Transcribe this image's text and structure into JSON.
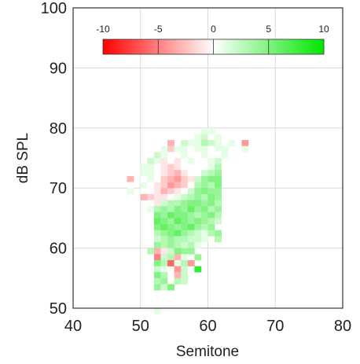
{
  "chart_data": {
    "type": "heatmap",
    "title": "",
    "xlabel": "Semitone",
    "ylabel": "dB SPL",
    "xlim": [
      40,
      80
    ],
    "ylim": [
      50,
      100
    ],
    "xticks": [
      "40",
      "50",
      "60",
      "70",
      "80"
    ],
    "yticks": [
      "50",
      "60",
      "70",
      "80",
      "90",
      "100"
    ],
    "grid": true,
    "colorbar": {
      "position": "top-inside",
      "range": [
        -10,
        10
      ],
      "ticks": [
        "-10",
        "-5",
        "0",
        "5",
        "10"
      ],
      "colors": {
        "negative": "#ff0000",
        "zero": "#ffffff",
        "positive": "#00e600"
      }
    },
    "cell_size": {
      "semitone": 1,
      "db": 1
    },
    "cells": [
      [
        59,
        79,
        1
      ],
      [
        60,
        79,
        1
      ],
      [
        58,
        78,
        1
      ],
      [
        59,
        78,
        2
      ],
      [
        60,
        78,
        0
      ],
      [
        61,
        78,
        1
      ],
      [
        54,
        77,
        -3
      ],
      [
        56,
        77,
        2
      ],
      [
        57,
        77,
        1
      ],
      [
        58,
        77,
        1
      ],
      [
        59,
        77,
        3
      ],
      [
        60,
        77,
        2
      ],
      [
        61,
        77,
        1
      ],
      [
        63,
        77,
        1
      ],
      [
        65,
        77,
        -4
      ],
      [
        53,
        76,
        1
      ],
      [
        54,
        76,
        -2
      ],
      [
        55,
        76,
        1
      ],
      [
        56,
        76,
        1
      ],
      [
        57,
        76,
        0
      ],
      [
        58,
        76,
        1
      ],
      [
        59,
        76,
        1
      ],
      [
        60,
        76,
        0
      ],
      [
        61,
        76,
        1
      ],
      [
        62,
        76,
        1
      ],
      [
        64,
        76,
        0
      ],
      [
        65,
        76,
        1
      ],
      [
        52,
        75,
        2
      ],
      [
        53,
        75,
        1
      ],
      [
        54,
        75,
        0
      ],
      [
        55,
        75,
        0
      ],
      [
        56,
        75,
        1
      ],
      [
        57,
        75,
        0
      ],
      [
        58,
        75,
        0
      ],
      [
        59,
        75,
        1
      ],
      [
        60,
        75,
        0
      ],
      [
        61,
        75,
        0
      ],
      [
        62,
        75,
        1
      ],
      [
        51,
        74,
        2
      ],
      [
        52,
        74,
        1
      ],
      [
        53,
        74,
        -1
      ],
      [
        54,
        74,
        0
      ],
      [
        55,
        74,
        -1
      ],
      [
        56,
        74,
        0
      ],
      [
        57,
        74,
        1
      ],
      [
        58,
        74,
        0
      ],
      [
        59,
        74,
        0
      ],
      [
        60,
        74,
        1
      ],
      [
        61,
        74,
        2
      ],
      [
        50,
        73,
        1
      ],
      [
        51,
        73,
        1
      ],
      [
        52,
        73,
        0
      ],
      [
        53,
        73,
        -1
      ],
      [
        54,
        73,
        -2
      ],
      [
        55,
        73,
        -1
      ],
      [
        56,
        73,
        0
      ],
      [
        57,
        73,
        0
      ],
      [
        58,
        73,
        0
      ],
      [
        59,
        73,
        0
      ],
      [
        60,
        73,
        1
      ],
      [
        61,
        73,
        3
      ],
      [
        50,
        72,
        1
      ],
      [
        51,
        72,
        1
      ],
      [
        52,
        72,
        0
      ],
      [
        53,
        72,
        -1
      ],
      [
        54,
        72,
        -2
      ],
      [
        55,
        72,
        -3
      ],
      [
        56,
        72,
        -1
      ],
      [
        57,
        72,
        0
      ],
      [
        58,
        72,
        0
      ],
      [
        59,
        72,
        2
      ],
      [
        60,
        72,
        3
      ],
      [
        61,
        72,
        4
      ],
      [
        48,
        71,
        -3
      ],
      [
        50,
        71,
        0
      ],
      [
        51,
        71,
        1
      ],
      [
        52,
        71,
        0
      ],
      [
        53,
        71,
        -2
      ],
      [
        54,
        71,
        -3
      ],
      [
        55,
        71,
        -4
      ],
      [
        56,
        71,
        -2
      ],
      [
        57,
        71,
        -1
      ],
      [
        58,
        71,
        2
      ],
      [
        59,
        71,
        4
      ],
      [
        60,
        71,
        5
      ],
      [
        61,
        71,
        5
      ],
      [
        48,
        70,
        0
      ],
      [
        50,
        70,
        1
      ],
      [
        51,
        70,
        0
      ],
      [
        52,
        70,
        -1
      ],
      [
        53,
        70,
        -2
      ],
      [
        54,
        70,
        -4
      ],
      [
        55,
        70,
        -3
      ],
      [
        56,
        70,
        -2
      ],
      [
        57,
        70,
        0
      ],
      [
        58,
        70,
        3
      ],
      [
        59,
        70,
        4
      ],
      [
        60,
        70,
        3
      ],
      [
        61,
        70,
        5
      ],
      [
        48,
        69,
        1
      ],
      [
        50,
        69,
        0
      ],
      [
        51,
        69,
        0
      ],
      [
        52,
        69,
        -1
      ],
      [
        53,
        69,
        -3
      ],
      [
        54,
        69,
        -2
      ],
      [
        55,
        69,
        -1
      ],
      [
        56,
        69,
        0
      ],
      [
        57,
        69,
        2
      ],
      [
        58,
        69,
        4
      ],
      [
        59,
        69,
        5
      ],
      [
        60,
        69,
        4
      ],
      [
        61,
        69,
        4
      ],
      [
        50,
        68,
        -3
      ],
      [
        51,
        68,
        -2
      ],
      [
        52,
        68,
        -1
      ],
      [
        53,
        68,
        -1
      ],
      [
        54,
        68,
        0
      ],
      [
        55,
        68,
        1
      ],
      [
        56,
        68,
        2
      ],
      [
        57,
        68,
        3
      ],
      [
        58,
        68,
        4
      ],
      [
        59,
        68,
        3
      ],
      [
        60,
        68,
        5
      ],
      [
        61,
        68,
        4
      ],
      [
        51,
        67,
        0
      ],
      [
        52,
        67,
        -1
      ],
      [
        53,
        67,
        2
      ],
      [
        54,
        67,
        3
      ],
      [
        55,
        67,
        3
      ],
      [
        56,
        67,
        4
      ],
      [
        57,
        67,
        5
      ],
      [
        58,
        67,
        5
      ],
      [
        59,
        67,
        4
      ],
      [
        60,
        67,
        5
      ],
      [
        61,
        67,
        3
      ],
      [
        51,
        66,
        1
      ],
      [
        52,
        66,
        3
      ],
      [
        53,
        66,
        4
      ],
      [
        54,
        66,
        3
      ],
      [
        55,
        66,
        5
      ],
      [
        56,
        66,
        4
      ],
      [
        57,
        66,
        6
      ],
      [
        58,
        66,
        4
      ],
      [
        59,
        66,
        5
      ],
      [
        60,
        66,
        3
      ],
      [
        61,
        66,
        4
      ],
      [
        52,
        65,
        5
      ],
      [
        53,
        65,
        4
      ],
      [
        54,
        65,
        6
      ],
      [
        55,
        65,
        5
      ],
      [
        56,
        65,
        5
      ],
      [
        57,
        65,
        4
      ],
      [
        58,
        65,
        3
      ],
      [
        59,
        65,
        4
      ],
      [
        60,
        65,
        5
      ],
      [
        61,
        65,
        3
      ],
      [
        52,
        64,
        6
      ],
      [
        53,
        64,
        5
      ],
      [
        54,
        64,
        4
      ],
      [
        55,
        64,
        6
      ],
      [
        56,
        64,
        5
      ],
      [
        57,
        64,
        4
      ],
      [
        58,
        64,
        5
      ],
      [
        59,
        64,
        4
      ],
      [
        60,
        64,
        3
      ],
      [
        61,
        64,
        2
      ],
      [
        52,
        63,
        5
      ],
      [
        53,
        63,
        6
      ],
      [
        54,
        63,
        5
      ],
      [
        55,
        63,
        4
      ],
      [
        56,
        63,
        5
      ],
      [
        57,
        63,
        6
      ],
      [
        58,
        63,
        4
      ],
      [
        59,
        63,
        3
      ],
      [
        60,
        63,
        4
      ],
      [
        52,
        62,
        3
      ],
      [
        53,
        62,
        4
      ],
      [
        54,
        62,
        5
      ],
      [
        55,
        62,
        6
      ],
      [
        56,
        62,
        4
      ],
      [
        57,
        62,
        3
      ],
      [
        58,
        62,
        2
      ],
      [
        59,
        62,
        1
      ],
      [
        60,
        62,
        3
      ],
      [
        61,
        62,
        4
      ],
      [
        52,
        61,
        2
      ],
      [
        53,
        61,
        3
      ],
      [
        54,
        61,
        4
      ],
      [
        55,
        61,
        3
      ],
      [
        56,
        61,
        3
      ],
      [
        57,
        61,
        2
      ],
      [
        58,
        61,
        2
      ],
      [
        59,
        61,
        1
      ],
      [
        61,
        61,
        3
      ],
      [
        52,
        60,
        4
      ],
      [
        53,
        60,
        3
      ],
      [
        54,
        60,
        4
      ],
      [
        55,
        60,
        3
      ],
      [
        56,
        60,
        2
      ],
      [
        57,
        60,
        3
      ],
      [
        58,
        60,
        1
      ],
      [
        51,
        59,
        3
      ],
      [
        52,
        59,
        -3
      ],
      [
        53,
        59,
        -1
      ],
      [
        54,
        59,
        2
      ],
      [
        55,
        59,
        5
      ],
      [
        56,
        59,
        4
      ],
      [
        57,
        59,
        4
      ],
      [
        52,
        58,
        -5
      ],
      [
        53,
        58,
        2
      ],
      [
        54,
        58,
        3
      ],
      [
        55,
        58,
        -3
      ],
      [
        56,
        58,
        1
      ],
      [
        58,
        58,
        4
      ],
      [
        52,
        57,
        5
      ],
      [
        53,
        57,
        3
      ],
      [
        54,
        57,
        -6
      ],
      [
        55,
        57,
        1
      ],
      [
        56,
        57,
        3
      ],
      [
        57,
        57,
        -4
      ],
      [
        52,
        56,
        2
      ],
      [
        53,
        56,
        1
      ],
      [
        55,
        56,
        -4
      ],
      [
        56,
        56,
        2
      ],
      [
        58,
        56,
        8
      ],
      [
        52,
        55,
        5
      ],
      [
        53,
        55,
        3
      ],
      [
        55,
        55,
        -3
      ],
      [
        56,
        55,
        2
      ],
      [
        52,
        54,
        3
      ],
      [
        53,
        54,
        4
      ],
      [
        55,
        54,
        3
      ],
      [
        56,
        54,
        2
      ],
      [
        52,
        53,
        4
      ],
      [
        53,
        53,
        2
      ],
      [
        54,
        53,
        5
      ],
      [
        52,
        49,
        1
      ]
    ]
  }
}
